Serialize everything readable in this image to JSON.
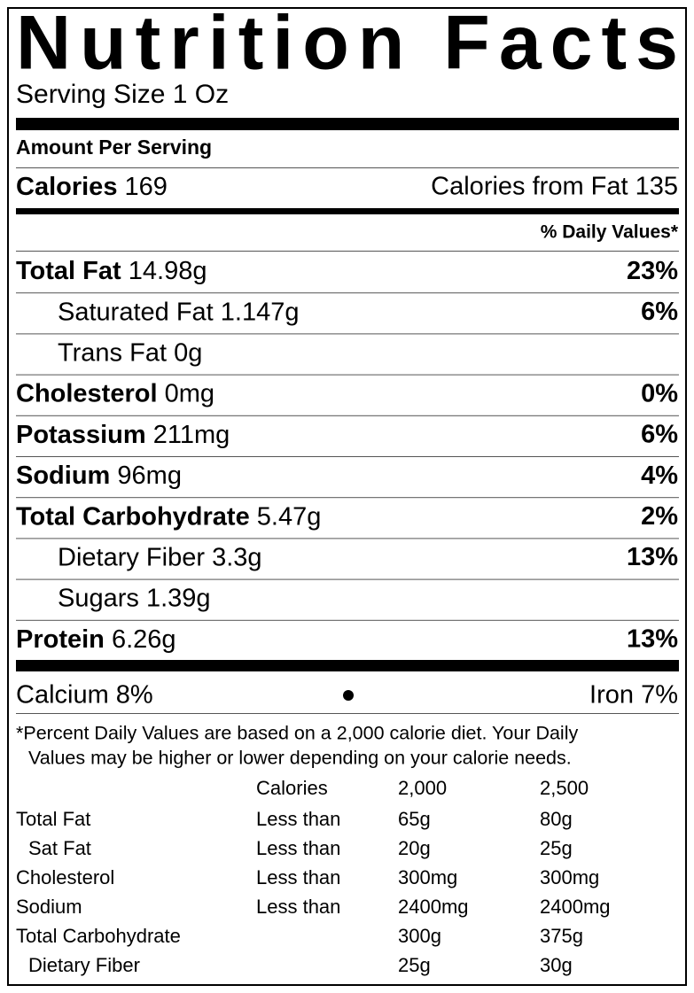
{
  "title": "Nutrition Facts",
  "serving_size": "Serving Size 1 Oz",
  "amount_per_serving": "Amount Per Serving",
  "calories": {
    "label": "Calories",
    "value": "169"
  },
  "calories_from_fat": "Calories from Fat 135",
  "daily_values_header": "% Daily Values*",
  "nutrients": [
    {
      "name": "Total Fat",
      "amount": "14.98g",
      "dv": "23%",
      "indent": false
    },
    {
      "name": "Saturated Fat",
      "amount": "1.147g",
      "dv": "6%",
      "indent": true
    },
    {
      "name": "Trans Fat",
      "amount": "0g",
      "indent": true
    },
    {
      "name": "Cholesterol",
      "amount": "0mg",
      "dv": "0%",
      "indent": false
    },
    {
      "name": "Potassium",
      "amount": "211mg",
      "dv": "6%",
      "indent": false
    },
    {
      "name": "Sodium",
      "amount": "96mg",
      "dv": "4%",
      "indent": false
    },
    {
      "name": "Total Carbohydrate",
      "amount": "5.47g",
      "dv": "2%",
      "indent": false
    },
    {
      "name": "Dietary Fiber",
      "amount": "3.3g",
      "dv": "13%",
      "indent": true
    },
    {
      "name": "Sugars",
      "amount": "1.39g",
      "indent": true
    },
    {
      "name": "Protein",
      "amount": "6.26g",
      "dv": "13%",
      "indent": false
    }
  ],
  "vitamins": [
    "Calcium 8%",
    "Iron 7%"
  ],
  "footnote": [
    "*Percent Daily Values are based on a 2,000 calorie diet. Your Daily",
    "Values may be higher or lower depending on your calorie needs."
  ],
  "table": {
    "header": [
      "Calories",
      "2,000",
      "2,500"
    ],
    "rows": [
      {
        "nutrient": "Total Fat",
        "basis": "Less than",
        "c2000": "65g",
        "c2500": "80g",
        "indent": false
      },
      {
        "nutrient": "Sat Fat",
        "basis": "Less than",
        "c2000": "20g",
        "c2500": "25g",
        "indent": true
      },
      {
        "nutrient": "Cholesterol",
        "basis": "Less than",
        "c2000": "300mg",
        "c2500": "300mg",
        "indent": false
      },
      {
        "nutrient": "Sodium",
        "basis": "Less than",
        "c2000": "2400mg",
        "c2500": "2400mg",
        "indent": false
      },
      {
        "nutrient": "Total Carbohydrate",
        "c2000": "300g",
        "c2500": "375g",
        "indent": false
      },
      {
        "nutrient": "Dietary Fiber",
        "c2000": "25g",
        "c2500": "30g",
        "indent": true
      }
    ]
  }
}
